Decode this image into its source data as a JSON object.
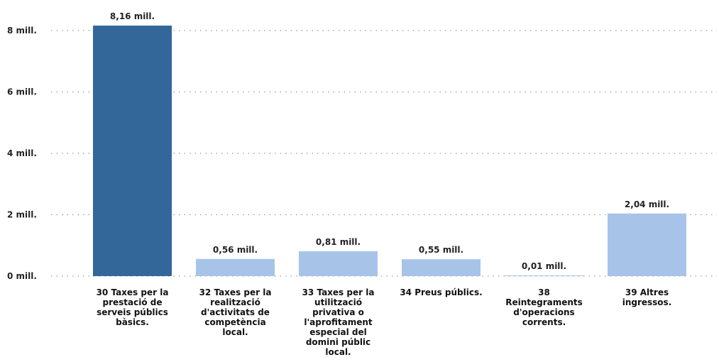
{
  "chart_data": {
    "type": "bar",
    "title": "",
    "xlabel": "",
    "ylabel": "",
    "ylim": [
      0,
      8.4
    ],
    "y_ticks": [
      {
        "value": 0,
        "label": "0 mill."
      },
      {
        "value": 2,
        "label": "2 mill."
      },
      {
        "value": 4,
        "label": "4 mill."
      },
      {
        "value": 6,
        "label": "6 mill."
      },
      {
        "value": 8,
        "label": "8 mill."
      }
    ],
    "grid": "horizontal dotted",
    "categories": [
      [
        "30 Taxes per la",
        "prestació de",
        "serveis públics",
        "bàsics."
      ],
      [
        "32 Taxes per la",
        "realització",
        "d'activitats de",
        "competència",
        "local."
      ],
      [
        "33 Taxes per la",
        "utilització",
        "privativa o",
        "l'aprofitament",
        "especial del",
        "domini públic",
        "local."
      ],
      [
        "34 Preus públics."
      ],
      [
        "38",
        "Reintegraments",
        "d'operacions",
        "corrents."
      ],
      [
        "39 Altres",
        "ingressos."
      ]
    ],
    "values": [
      8.16,
      0.56,
      0.81,
      0.55,
      0.01,
      2.04
    ],
    "data_labels": [
      "8,16 mill.",
      "0,56 mill.",
      "0,81 mill.",
      "0,55 mill.",
      "0,01 mill.",
      "2,04 mill."
    ],
    "colors": [
      "#336699",
      "#a7c4e8",
      "#a7c4e8",
      "#a7c4e8",
      "#a7c4e8",
      "#a7c4e8"
    ]
  }
}
